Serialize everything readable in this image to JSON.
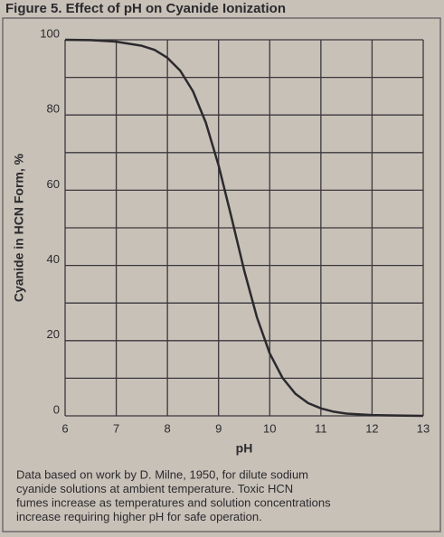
{
  "chart_data": {
    "type": "line",
    "title": "Figure 5.   Effect of pH on Cyanide Ionization",
    "x_label": "pH",
    "y_label": "Cyanide in HCN Form, %",
    "x": [
      6,
      6.5,
      7,
      7.5,
      7.75,
      8,
      8.25,
      8.5,
      8.75,
      9,
      9.25,
      9.5,
      9.75,
      10,
      10.25,
      10.5,
      10.75,
      11,
      11.25,
      11.5,
      12,
      12.5,
      13
    ],
    "series": [
      {
        "name": "HCN",
        "color": "#2b2a2e",
        "values": [
          100,
          99.9,
          99.5,
          98.4,
          97.3,
          95.2,
          91.8,
          86.3,
          78.0,
          66.6,
          52.9,
          38.7,
          26.2,
          16.6,
          10.1,
          5.9,
          3.4,
          2.0,
          1.1,
          0.6,
          0.2,
          0.1,
          0
        ]
      }
    ],
    "xlim": [
      6,
      13
    ],
    "ylim": [
      0,
      100
    ],
    "xticks": [
      6,
      7,
      8,
      9,
      10,
      11,
      12,
      13
    ],
    "yticks": [
      0,
      20,
      40,
      60,
      80,
      100
    ],
    "y_gridlines": [
      0,
      10,
      20,
      30,
      40,
      50,
      60,
      70,
      80,
      90,
      100
    ],
    "grid": true,
    "caption": [
      "Data based on work by D. Milne, 1950, for dilute sodium",
      "cyanide solutions at ambient temperature. Toxic HCN",
      "fumes increase as temperatures and solution concentrations",
      "increase requiring higher pH for safe operation."
    ]
  }
}
